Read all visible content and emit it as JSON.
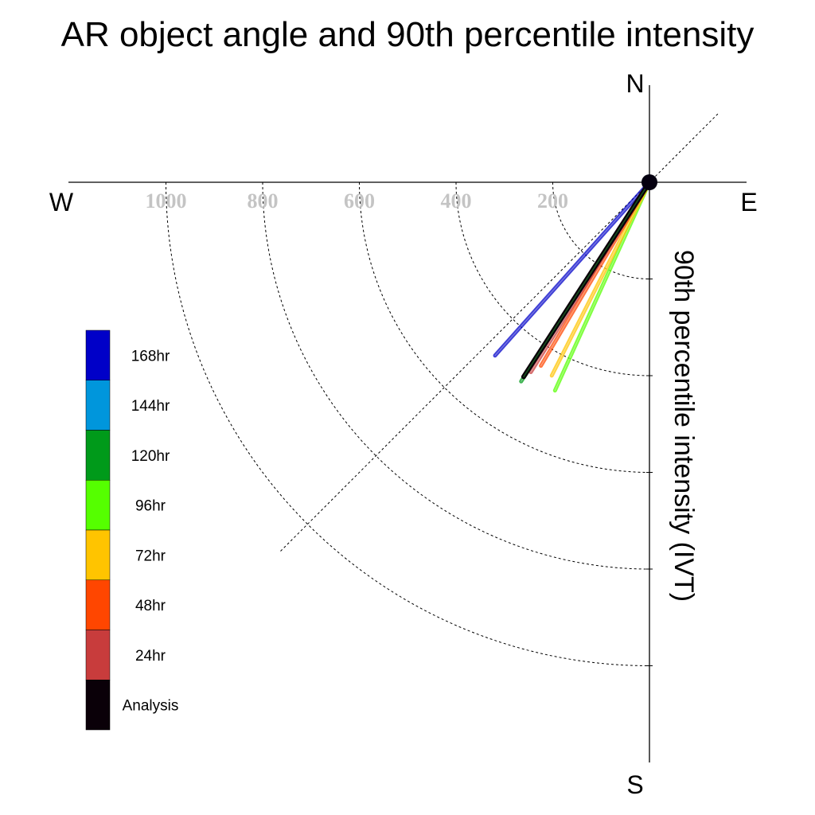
{
  "chart_data": {
    "type": "polar-vector",
    "title": "AR object angle and 90th percentile intensity",
    "ylabel": "90th percentile intensity (IVT)",
    "directions": {
      "north": "N",
      "south": "S",
      "east": "E",
      "west": "W"
    },
    "radial_ticks": [
      200,
      400,
      600,
      800,
      1000
    ],
    "radial_tick_labels": [
      "200",
      "400",
      "600",
      "800",
      "1000"
    ],
    "rlim": [
      0,
      1200
    ],
    "series": [
      {
        "name": "168hr",
        "color": "#0000c8",
        "angle_deg": 221.7,
        "intensity": 480
      },
      {
        "name": "144hr",
        "color": "#0096dc",
        "angle_deg": null,
        "intensity": null
      },
      {
        "name": "120hr",
        "color": "#009a1a",
        "angle_deg": 212.8,
        "intensity": 490
      },
      {
        "name": "96hr",
        "color": "#55ff00",
        "angle_deg": 204.4,
        "intensity": 473
      },
      {
        "name": "72hr",
        "color": "#ffc400",
        "angle_deg": 206.8,
        "intensity": 448
      },
      {
        "name": "48hr",
        "color": "#ff4600",
        "angle_deg": 210.6,
        "intensity": 441
      },
      {
        "name": "24hr",
        "color": "#c83c3c",
        "angle_deg": 212.0,
        "intensity": 463
      },
      {
        "name": "Analysis",
        "color": "#0a0008",
        "angle_deg": 212.9,
        "intensity": 479
      }
    ],
    "legend": [
      "168hr",
      "144hr",
      "120hr",
      "96hr",
      "72hr",
      "48hr",
      "24hr",
      "Analysis"
    ],
    "legend_position": "left",
    "gridlines": "dashed"
  }
}
